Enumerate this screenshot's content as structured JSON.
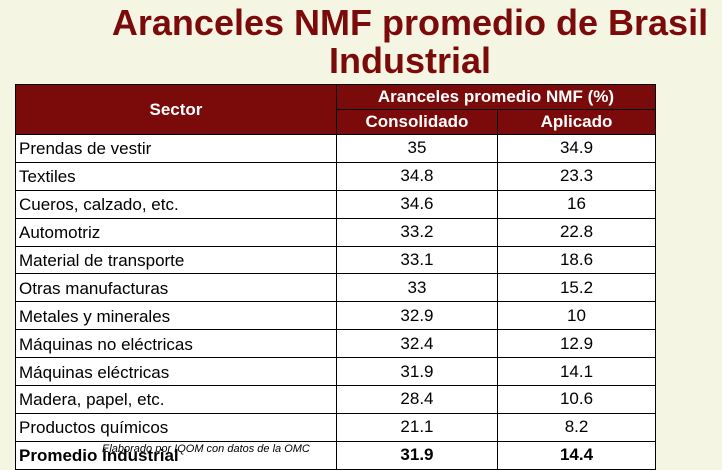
{
  "title_line1": "Aranceles NMF promedio de Brasil",
  "title_line2": "Industrial",
  "table": {
    "col_sector": "Sector",
    "col_group": "Aranceles promedio NMF (%)",
    "col_consolidated": "Consolidado",
    "col_applied": "Aplicado",
    "rows": [
      {
        "sector": "Prendas de vestir",
        "consolidated": "35",
        "applied": "34.9"
      },
      {
        "sector": "Textiles",
        "consolidated": "34.8",
        "applied": "23.3"
      },
      {
        "sector": "Cueros, calzado, etc.",
        "consolidated": "34.6",
        "applied": "16"
      },
      {
        "sector": "Automotriz",
        "consolidated": "33.2",
        "applied": "22.8"
      },
      {
        "sector": "Material de transporte",
        "consolidated": "33.1",
        "applied": "18.6"
      },
      {
        "sector": "Otras manufacturas",
        "consolidated": "33",
        "applied": "15.2"
      },
      {
        "sector": "Metales y minerales",
        "consolidated": "32.9",
        "applied": "10"
      },
      {
        "sector": "Máquinas no eléctricas",
        "consolidated": "32.4",
        "applied": "12.9"
      },
      {
        "sector": "Máquinas eléctricas",
        "consolidated": "31.9",
        "applied": "14.1"
      },
      {
        "sector": "Madera, papel, etc.",
        "consolidated": "28.4",
        "applied": "10.6"
      },
      {
        "sector": "Productos químicos",
        "consolidated": "21.1",
        "applied": "8.2"
      }
    ],
    "total": {
      "sector": "Promedio industrial",
      "consolidated": "31.9",
      "applied": "14.4"
    }
  },
  "source": "Elaborado por IQOM con datos de la OMC"
}
